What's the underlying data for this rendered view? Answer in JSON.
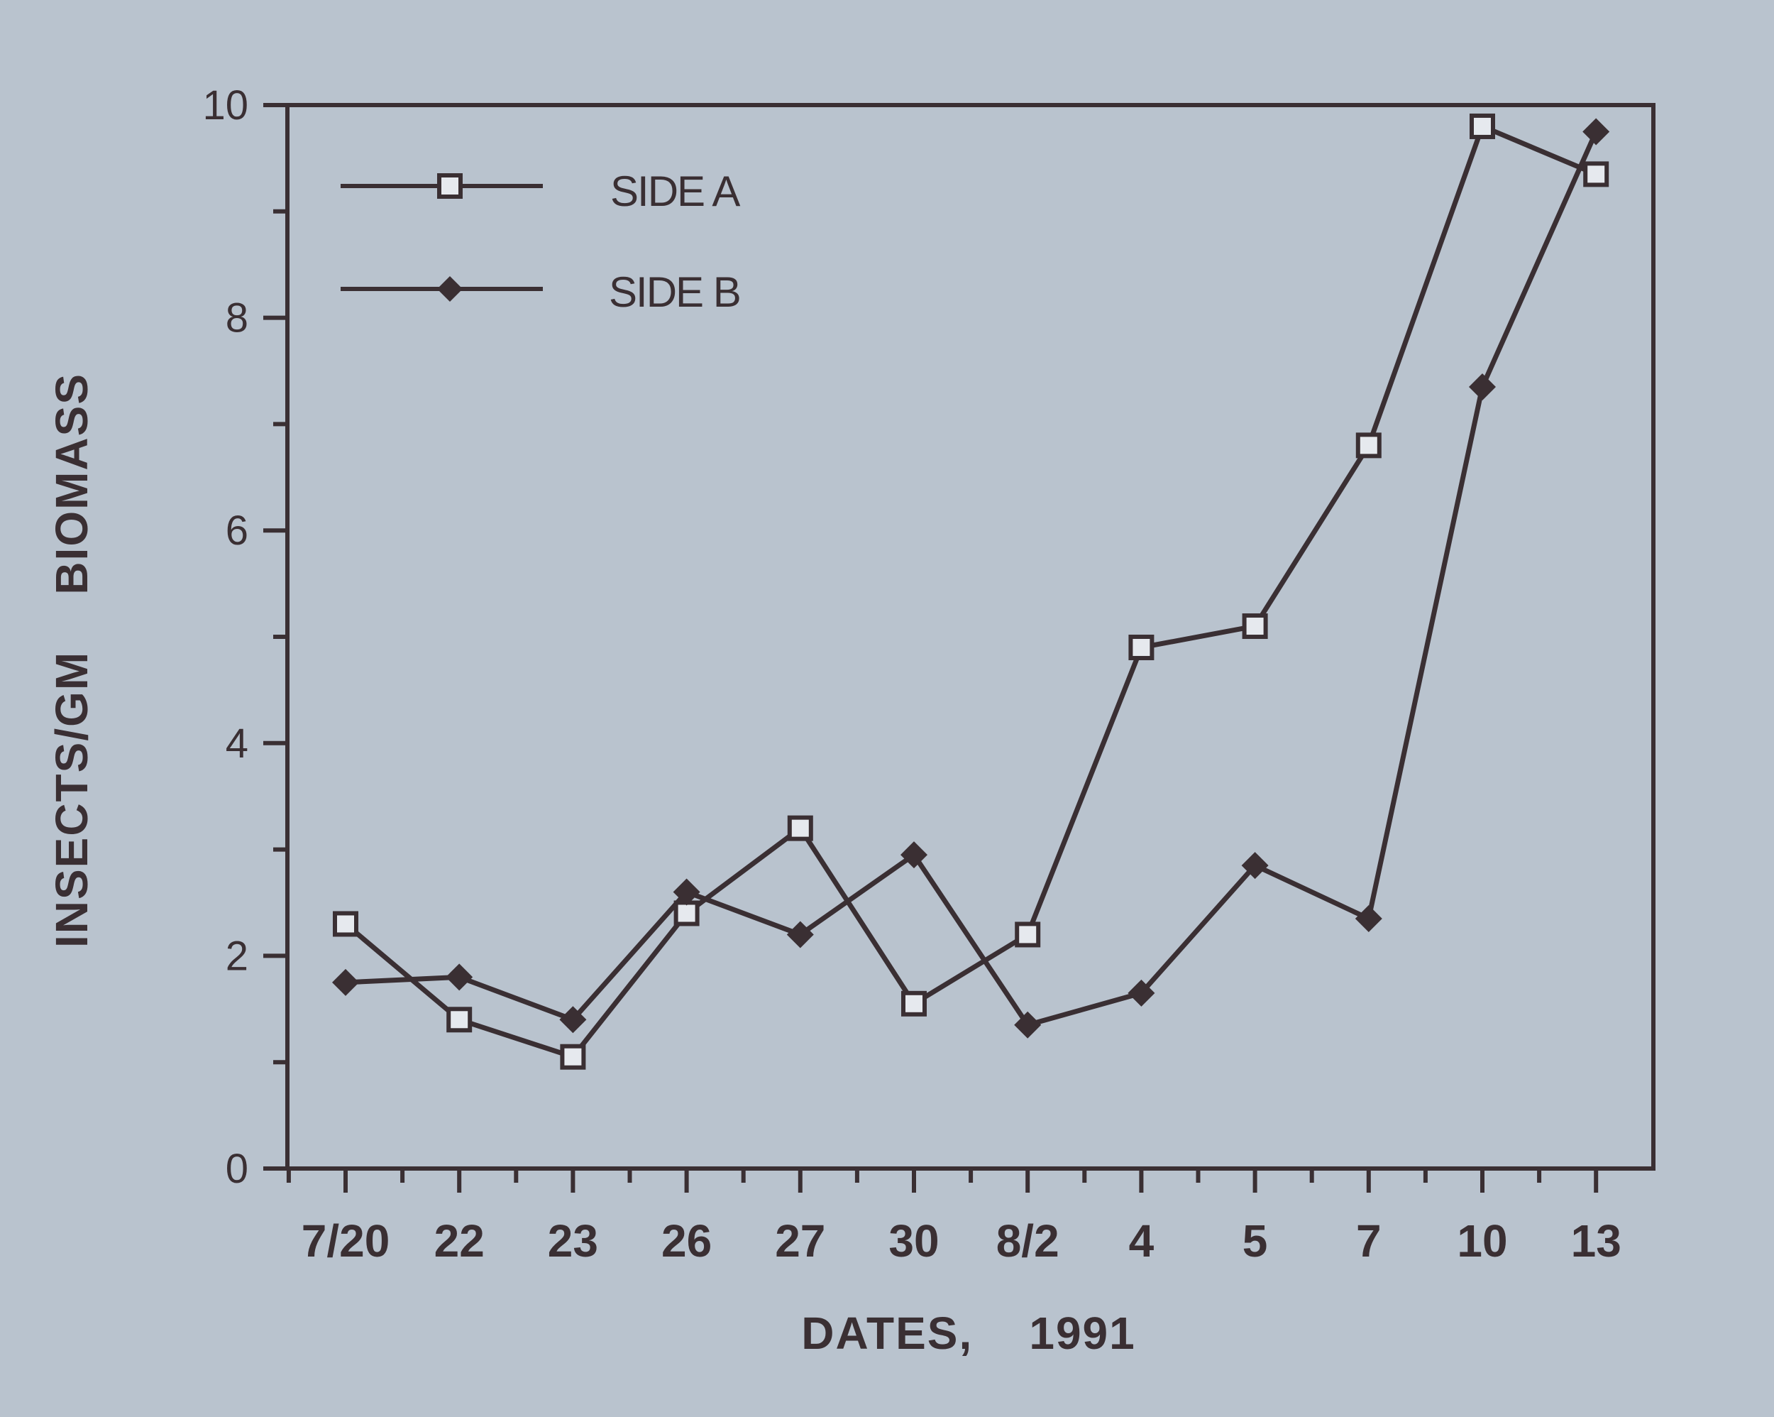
{
  "chart_data": {
    "type": "line",
    "title": "",
    "xlabel": "DATES,    1991",
    "ylabel": "INSECTS/GM    BIOMASS",
    "categories": [
      "7/20",
      "22",
      "23",
      "26",
      "27",
      "30",
      "8/2",
      "4",
      "5",
      "7",
      "10",
      "13"
    ],
    "yticks": [
      "0",
      "2",
      "4",
      "6",
      "8",
      "10"
    ],
    "ylim": [
      0,
      10
    ],
    "grid": false,
    "legend_position": "top-left",
    "series": [
      {
        "name": "SIDE A",
        "marker": "open-square",
        "values": [
          2.3,
          1.4,
          1.05,
          2.4,
          3.2,
          1.55,
          2.2,
          4.9,
          5.1,
          6.8,
          9.8,
          9.35
        ]
      },
      {
        "name": "SIDE B",
        "marker": "filled-diamond",
        "values": [
          1.75,
          1.8,
          1.4,
          2.6,
          2.2,
          2.95,
          1.35,
          1.65,
          2.85,
          2.35,
          7.35,
          9.75
        ]
      }
    ],
    "colors": {
      "background": "#b9c3ce",
      "ink": "#3a2f33",
      "marker_fill": "#e6e9ee"
    }
  }
}
